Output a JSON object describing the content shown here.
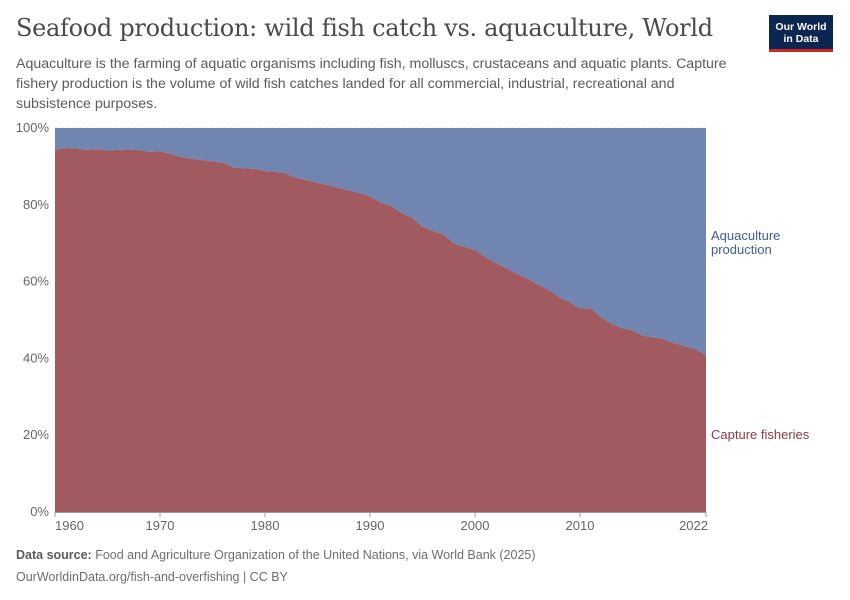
{
  "header": {
    "title": "Seafood production: wild fish catch vs. aquaculture, World",
    "subtitle": "Aquaculture is the farming of aquatic organisms including fish, molluscs, crustaceans and aquatic plants. Capture fishery production is the volume of wild fish catches landed for all commercial, industrial, recreational and subsistence purposes.",
    "logo_line1": "Our World",
    "logo_line2": "in Data"
  },
  "footer": {
    "source_label": "Data source:",
    "source_text": "Food and Agriculture Organization of the United Nations, via World Bank (2025)",
    "url_license": "OurWorldinData.org/fish-and-overfishing | CC BY"
  },
  "colors": {
    "capture": "#a05a60",
    "aquaculture": "#7086b0",
    "capture_label": "#8c3a42",
    "aquaculture_label": "#3f5e96",
    "logo_bg": "#0b2650",
    "logo_accent": "#ce261e"
  },
  "chart_data": {
    "type": "area",
    "stacked": true,
    "relative": true,
    "xlim": [
      1960,
      2022
    ],
    "ylim": [
      0,
      100
    ],
    "y_ticks": [
      "0%",
      "20%",
      "40%",
      "60%",
      "80%",
      "100%"
    ],
    "x_ticks": [
      "1960",
      "1970",
      "1980",
      "1990",
      "2000",
      "2010",
      "2022"
    ],
    "x": [
      1960,
      1961,
      1962,
      1963,
      1964,
      1965,
      1966,
      1967,
      1968,
      1969,
      1970,
      1971,
      1972,
      1973,
      1974,
      1975,
      1976,
      1977,
      1978,
      1979,
      1980,
      1981,
      1982,
      1983,
      1984,
      1985,
      1986,
      1987,
      1988,
      1989,
      1990,
      1991,
      1992,
      1993,
      1994,
      1995,
      1996,
      1997,
      1998,
      1999,
      2000,
      2001,
      2002,
      2003,
      2004,
      2005,
      2006,
      2007,
      2008,
      2009,
      2010,
      2011,
      2012,
      2013,
      2014,
      2015,
      2016,
      2017,
      2018,
      2019,
      2020,
      2021,
      2022
    ],
    "series": [
      {
        "name": "Capture fisheries",
        "values": [
          94.3,
          94.8,
          94.7,
          94.3,
          94.5,
          94.1,
          94.3,
          94.4,
          94.2,
          93.8,
          93.9,
          93.3,
          92.4,
          92.0,
          91.7,
          91.3,
          91.0,
          89.7,
          89.5,
          89.4,
          88.8,
          88.6,
          88.2,
          87.0,
          86.4,
          85.7,
          85.2,
          84.4,
          83.8,
          83.0,
          82.2,
          80.6,
          79.7,
          77.9,
          76.6,
          74.3,
          73.2,
          72.3,
          69.9,
          69.1,
          68.2,
          66.4,
          64.8,
          63.5,
          62.0,
          60.8,
          59.2,
          57.9,
          56.0,
          54.7,
          53.0,
          53.1,
          50.7,
          49.0,
          47.9,
          47.3,
          45.9,
          45.5,
          45.0,
          43.9,
          43.2,
          42.4,
          40.9
        ]
      },
      {
        "name": "Aquaculture production",
        "label_lines": [
          "Aquaculture",
          "production"
        ],
        "values": [
          5.7,
          5.2,
          5.3,
          5.7,
          5.5,
          5.9,
          5.7,
          5.6,
          5.8,
          6.2,
          6.1,
          6.7,
          7.6,
          8.0,
          8.3,
          8.7,
          9.0,
          10.3,
          10.5,
          10.6,
          11.2,
          11.4,
          11.8,
          13.0,
          13.6,
          14.3,
          14.8,
          15.6,
          16.2,
          17.0,
          17.8,
          19.4,
          20.3,
          22.1,
          23.4,
          25.7,
          26.8,
          27.7,
          30.1,
          30.9,
          31.8,
          33.6,
          35.2,
          36.5,
          38.0,
          39.2,
          40.8,
          42.1,
          44.0,
          45.3,
          47.0,
          46.9,
          49.3,
          51.0,
          52.1,
          52.7,
          54.1,
          54.5,
          55.0,
          56.1,
          56.8,
          57.6,
          59.1
        ]
      }
    ]
  }
}
